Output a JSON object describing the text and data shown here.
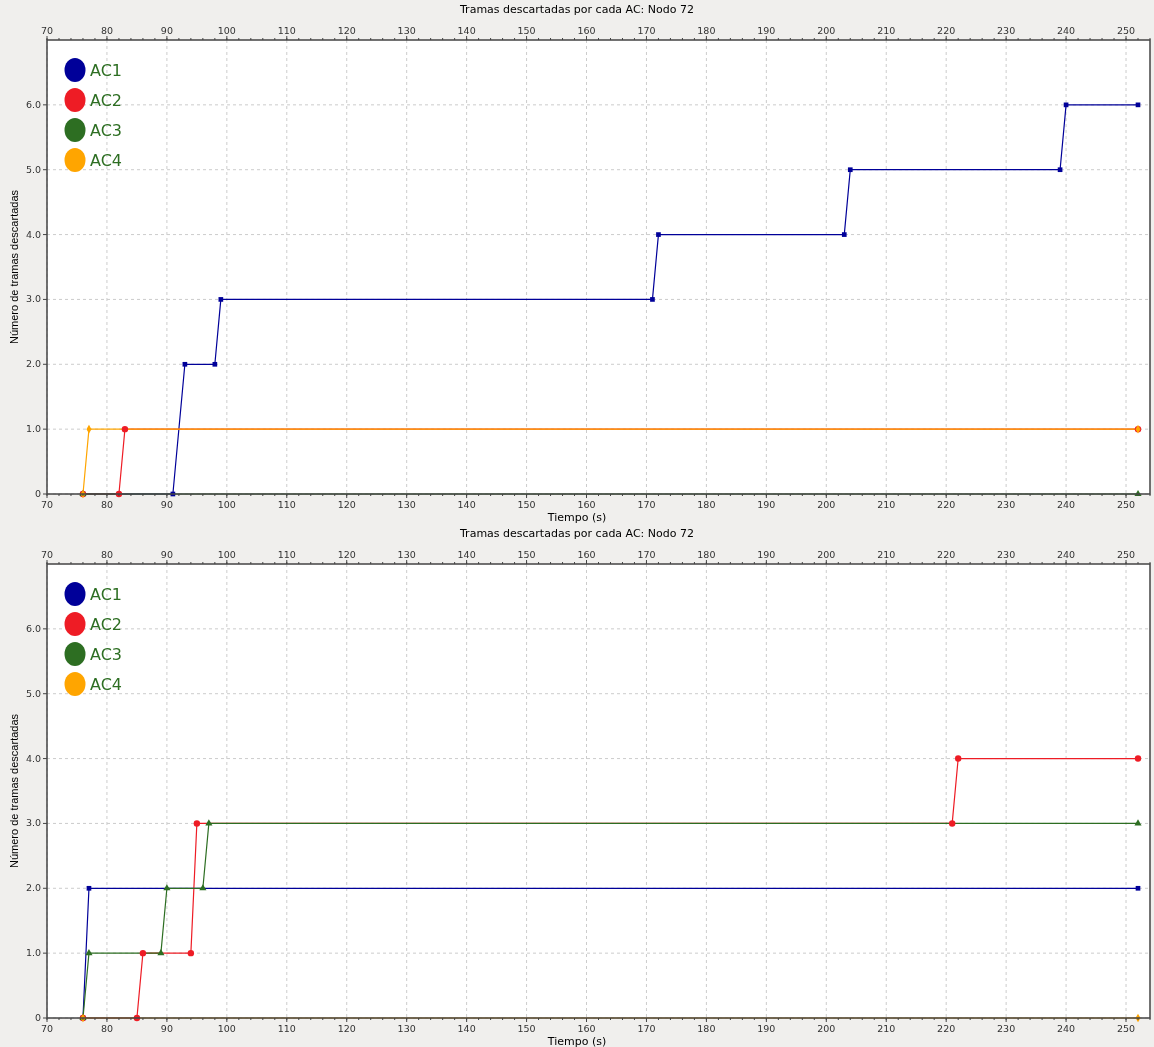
{
  "chart_data": [
    {
      "type": "line",
      "title": "Tramas descartadas por cada AC: Nodo 72",
      "xlabel": "Tiempo (s)",
      "ylabel": "Número de tramas descartadas",
      "xlim": [
        70,
        254
      ],
      "xticks": [
        70,
        80,
        90,
        100,
        110,
        120,
        130,
        140,
        150,
        160,
        170,
        180,
        190,
        200,
        210,
        220,
        230,
        240,
        250
      ],
      "x2lim": [
        70,
        254
      ],
      "x2ticks": [
        70,
        80,
        90,
        100,
        110,
        120,
        130,
        140,
        150,
        160,
        170,
        180,
        190,
        200,
        210,
        220,
        230,
        240,
        250
      ],
      "ylim": [
        0,
        7
      ],
      "yticks": [
        0,
        {
          "value": 1,
          "label": "1.0"
        },
        {
          "value": 2,
          "label": "2.0"
        },
        {
          "value": 3,
          "label": "3.0"
        },
        {
          "value": 4,
          "label": "4.0"
        },
        {
          "value": 5,
          "label": "5.0"
        },
        {
          "value": 6,
          "label": "6.0"
        }
      ],
      "grid": true,
      "legend": "top left",
      "line_style": "solid",
      "series": [
        {
          "name": "AC1",
          "color": "#000099",
          "marker": "square",
          "x": [
            76,
            91,
            93,
            98,
            99,
            171,
            172,
            203,
            204,
            239,
            240,
            252
          ],
          "values": [
            0,
            0,
            2,
            2,
            3,
            3,
            4,
            4,
            5,
            5,
            6,
            6
          ]
        },
        {
          "name": "AC2",
          "color": "#ee1c25",
          "marker": "circle",
          "x": [
            76,
            82,
            83,
            252
          ],
          "values": [
            0,
            0,
            1,
            1
          ]
        },
        {
          "name": "AC3",
          "color": "#2d6e22",
          "marker": "triangle",
          "x": [
            76,
            252
          ],
          "values": [
            0,
            0
          ]
        },
        {
          "name": "AC4",
          "color": "#ffa500",
          "marker": "diamond",
          "x": [
            76,
            77,
            252
          ],
          "values": [
            0,
            1,
            1
          ]
        }
      ]
    },
    {
      "type": "line",
      "title": "Tramas descartadas por cada AC: Nodo 72",
      "xlabel": "Tiempo (s)",
      "ylabel": "Número de tramas descartadas",
      "xlim": [
        70,
        254
      ],
      "xticks": [
        70,
        80,
        90,
        100,
        110,
        120,
        130,
        140,
        150,
        160,
        170,
        180,
        190,
        200,
        210,
        220,
        230,
        240,
        250
      ],
      "x2lim": [
        70,
        254
      ],
      "x2ticks": [
        70,
        80,
        90,
        100,
        110,
        120,
        130,
        140,
        150,
        160,
        170,
        180,
        190,
        200,
        210,
        220,
        230,
        240,
        250
      ],
      "ylim": [
        0,
        7
      ],
      "yticks": [
        0,
        {
          "value": 1,
          "label": "1.0"
        },
        {
          "value": 2,
          "label": "2.0"
        },
        {
          "value": 3,
          "label": "3.0"
        },
        {
          "value": 4,
          "label": "4.0"
        },
        {
          "value": 5,
          "label": "5.0"
        },
        {
          "value": 6,
          "label": "6.0"
        }
      ],
      "grid": true,
      "legend": "top left",
      "line_style": "solid",
      "series": [
        {
          "name": "AC1",
          "color": "#000099",
          "marker": "square",
          "x": [
            76,
            77,
            252
          ],
          "values": [
            0,
            2,
            2
          ]
        },
        {
          "name": "AC2",
          "color": "#ee1c25",
          "marker": "circle",
          "x": [
            76,
            85,
            86,
            94,
            95,
            221,
            222,
            252
          ],
          "values": [
            0,
            0,
            1,
            1,
            3,
            3,
            4,
            4
          ]
        },
        {
          "name": "AC3",
          "color": "#2d6e22",
          "marker": "triangle",
          "x": [
            76,
            77,
            89,
            90,
            96,
            97,
            252
          ],
          "values": [
            0,
            1,
            1,
            2,
            2,
            3,
            3
          ]
        },
        {
          "name": "AC4",
          "color": "#ffa500",
          "marker": "diamond",
          "x": [
            76,
            252
          ],
          "values": [
            0,
            0
          ]
        }
      ]
    }
  ]
}
